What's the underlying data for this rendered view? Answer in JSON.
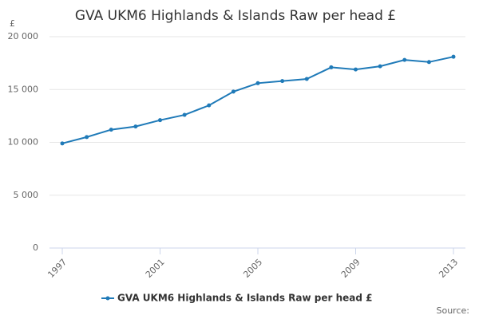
{
  "chart_data": {
    "type": "line",
    "title": "GVA UKM6 Highlands & Islands Raw per head £",
    "y_unit": "£",
    "source": "Source:",
    "x": [
      1997,
      1998,
      1999,
      2000,
      2001,
      2002,
      2003,
      2004,
      2005,
      2006,
      2007,
      2008,
      2009,
      2010,
      2011,
      2012,
      2013
    ],
    "series": [
      {
        "name": "GVA UKM6 Highlands & Islands Raw per head £",
        "color": "#1f7ab8",
        "values": [
          9900,
          10500,
          11200,
          11500,
          12100,
          12600,
          13500,
          14800,
          15600,
          15800,
          16000,
          17100,
          16900,
          17200,
          17800,
          17600,
          18100
        ]
      }
    ],
    "xlim": [
      1997,
      2013
    ],
    "xticks": [
      1997,
      2001,
      2005,
      2009,
      2013
    ],
    "ylim": [
      0,
      20000
    ],
    "yticks": [
      0,
      {
        "value": 5000,
        "label": "5 000"
      },
      {
        "value": 10000,
        "label": "10 000"
      },
      {
        "value": 15000,
        "label": "15 000"
      },
      {
        "value": 20000,
        "label": "20 000"
      }
    ],
    "grid": true,
    "legend": "bottom"
  }
}
